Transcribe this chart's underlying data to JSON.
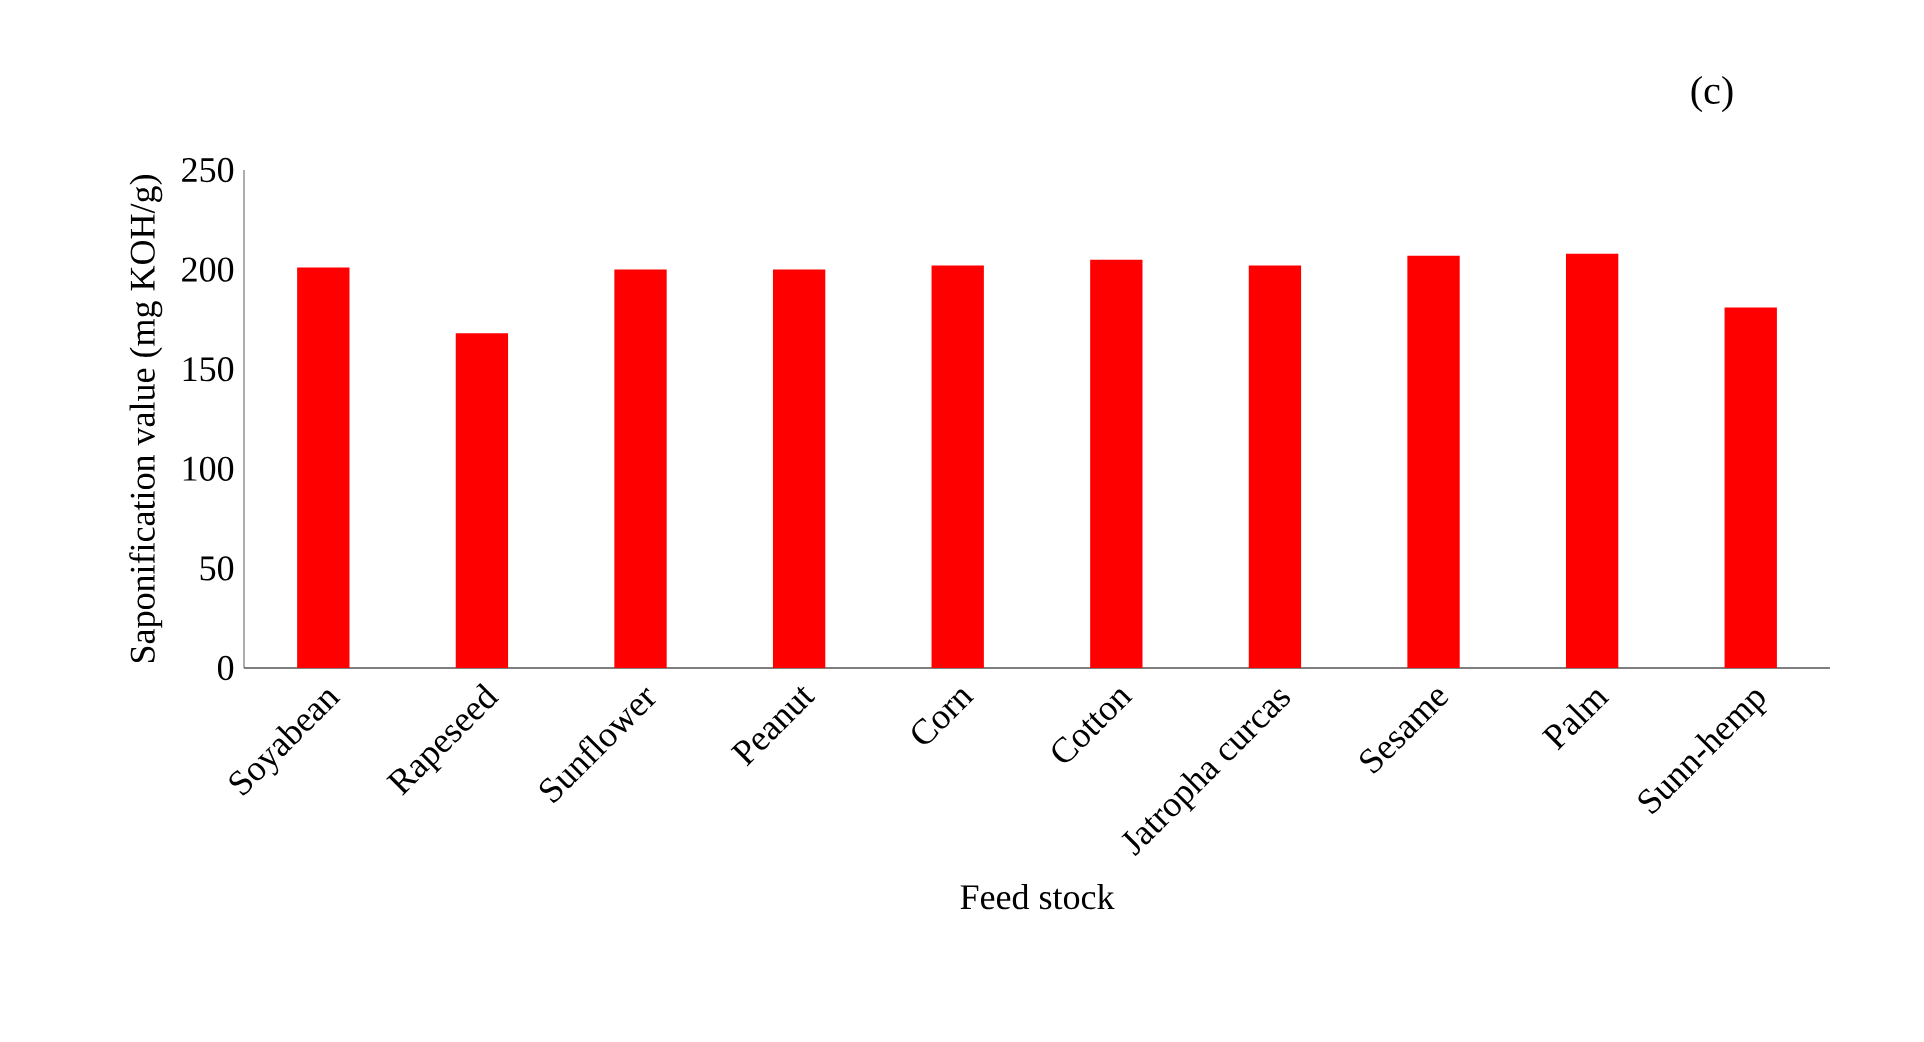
{
  "chart_data": {
    "type": "bar",
    "title": "(c)",
    "xlabel": "Feed stock",
    "ylabel": "Saponification value (mg KOH/g)",
    "categories": [
      "Soyabean",
      "Rapeseed",
      "Sunflower",
      "Peanut",
      "Corn",
      "Cotton",
      "Jatropha curcas",
      "Sesame",
      "Palm",
      "Sunn-hemp"
    ],
    "values": [
      201,
      168,
      200,
      200,
      202,
      205,
      202,
      207,
      208,
      181
    ],
    "color": "#ff0000",
    "ylim": [
      0,
      250
    ],
    "yticks": [
      0,
      50,
      100,
      150,
      200,
      250
    ],
    "grid": false
  }
}
